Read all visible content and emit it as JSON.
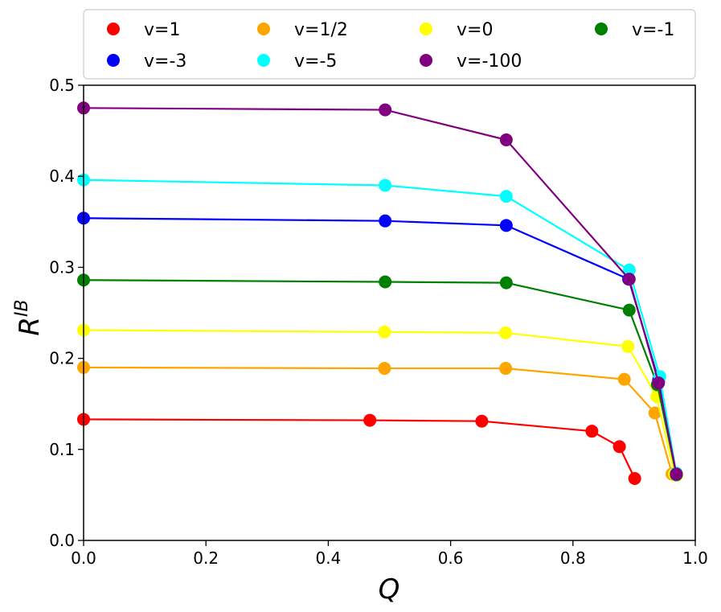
{
  "chart_data": {
    "type": "line",
    "title": "",
    "xlabel": "Q",
    "ylabel": "R",
    "ylabel_superscript": "IB",
    "xlim": [
      0.0,
      1.0
    ],
    "ylim": [
      0.0,
      0.5
    ],
    "xticks": [
      0.0,
      0.2,
      0.4,
      0.6,
      0.8,
      1.0
    ],
    "xtick_labels": [
      "0.0",
      "0.2",
      "0.4",
      "0.6",
      "0.8",
      "1.0"
    ],
    "yticks": [
      0.0,
      0.1,
      0.2,
      0.3,
      0.4,
      0.5
    ],
    "ytick_labels": [
      "0.0",
      "0.1",
      "0.2",
      "0.3",
      "0.4",
      "0.5"
    ],
    "grid": false,
    "legend_position": "top",
    "series": [
      {
        "name": "v=1",
        "color": "#ff0000",
        "x": [
          0.0,
          0.468,
          0.651,
          0.831,
          0.876,
          0.901
        ],
        "y": [
          0.133,
          0.132,
          0.131,
          0.12,
          0.103,
          0.068
        ]
      },
      {
        "name": "v=1/2",
        "color": "#ffa500",
        "x": [
          0.0,
          0.492,
          0.69,
          0.884,
          0.934,
          0.962,
          0.97
        ],
        "y": [
          0.19,
          0.189,
          0.189,
          0.177,
          0.14,
          0.073,
          0.072
        ]
      },
      {
        "name": "v=0",
        "color": "#ffff00",
        "x": [
          0.0,
          0.492,
          0.69,
          0.89,
          0.937,
          0.966,
          0.97
        ],
        "y": [
          0.231,
          0.229,
          0.228,
          0.213,
          0.158,
          0.073,
          0.072
        ]
      },
      {
        "name": "v=-1",
        "color": "#008000",
        "x": [
          0.0,
          0.493,
          0.691,
          0.892,
          0.938,
          0.969
        ],
        "y": [
          0.286,
          0.284,
          0.283,
          0.253,
          0.171,
          0.072
        ]
      },
      {
        "name": "v=-3",
        "color": "#0000ff",
        "x": [
          0.0,
          0.493,
          0.691,
          0.891,
          0.94,
          0.969
        ],
        "y": [
          0.354,
          0.351,
          0.346,
          0.287,
          0.176,
          0.073
        ]
      },
      {
        "name": "v=-5",
        "color": "#00ffff",
        "x": [
          0.0,
          0.493,
          0.691,
          0.892,
          0.942,
          0.969
        ],
        "y": [
          0.396,
          0.39,
          0.378,
          0.297,
          0.18,
          0.074
        ]
      },
      {
        "name": "v=-100",
        "color": "#800080",
        "x": [
          0.0,
          0.493,
          0.691,
          0.892,
          0.94,
          0.969
        ],
        "y": [
          0.475,
          0.473,
          0.44,
          0.287,
          0.173,
          0.073
        ]
      }
    ],
    "legend": [
      {
        "label": "v=1",
        "color": "#ff0000"
      },
      {
        "label": "v=1/2",
        "color": "#ffa500"
      },
      {
        "label": "v=0",
        "color": "#ffff00"
      },
      {
        "label": "v=-1",
        "color": "#008000"
      },
      {
        "label": "v=-3",
        "color": "#0000ff"
      },
      {
        "label": "v=-5",
        "color": "#00ffff"
      },
      {
        "label": "v=-100",
        "color": "#800080"
      }
    ]
  }
}
